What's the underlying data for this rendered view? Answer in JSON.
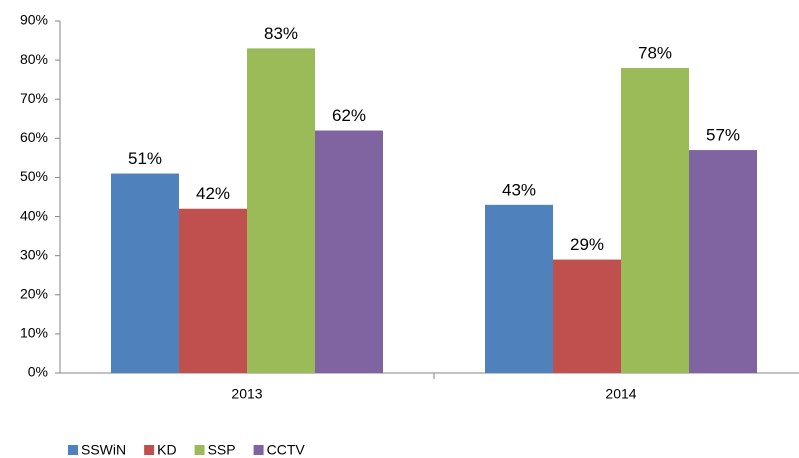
{
  "chart_data": {
    "type": "bar",
    "categories": [
      "2013",
      "2014"
    ],
    "series": [
      {
        "name": "SSWiN",
        "color": "#4f81bd",
        "values": [
          51,
          43
        ],
        "value_labels": [
          "51%",
          "43%"
        ]
      },
      {
        "name": "KD",
        "color": "#c0504d",
        "values": [
          42,
          29
        ],
        "value_labels": [
          "42%",
          "29%"
        ]
      },
      {
        "name": "SSP",
        "color": "#9bbb59",
        "values": [
          83,
          78
        ],
        "value_labels": [
          "83%",
          "78%"
        ]
      },
      {
        "name": "CCTV",
        "color": "#8064a2",
        "values": [
          62,
          57
        ],
        "value_labels": [
          "62%",
          "57%"
        ]
      }
    ],
    "ylim": [
      0,
      90
    ],
    "yticks": [
      {
        "value": 0,
        "label": "0%"
      },
      {
        "value": 10,
        "label": "10%"
      },
      {
        "value": 20,
        "label": "20%"
      },
      {
        "value": 30,
        "label": "30%"
      },
      {
        "value": 40,
        "label": "40%"
      },
      {
        "value": 50,
        "label": "50%"
      },
      {
        "value": 60,
        "label": "60%"
      },
      {
        "value": 70,
        "label": "70%"
      },
      {
        "value": 80,
        "label": "80%"
      },
      {
        "value": 90,
        "label": "90%"
      }
    ],
    "grid": false,
    "legend": "bottom"
  }
}
